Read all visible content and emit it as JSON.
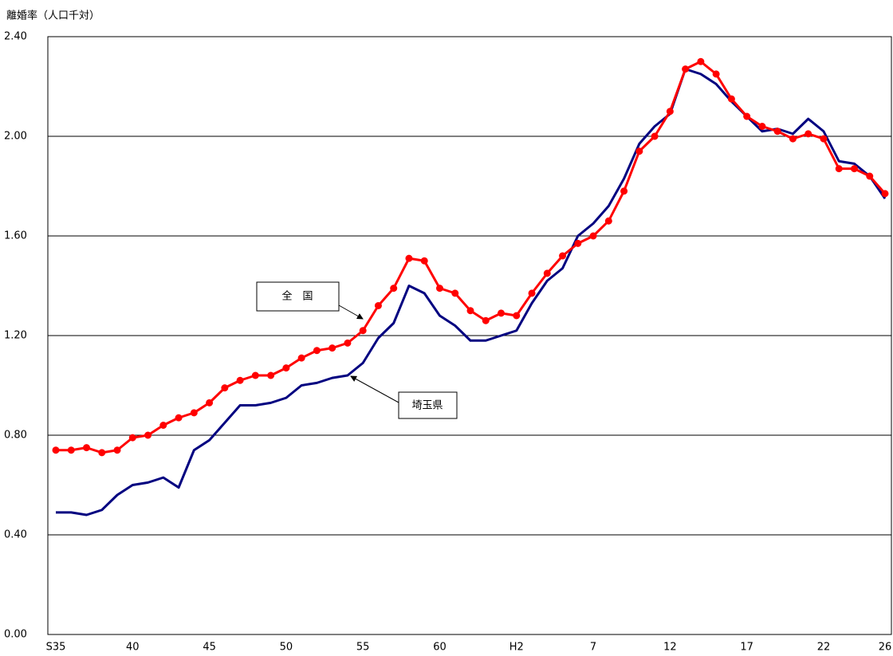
{
  "chart_data": {
    "type": "line",
    "y_label": "離婚率（人口千対）",
    "categories": [
      "S35",
      null,
      null,
      null,
      null,
      "40",
      null,
      null,
      null,
      null,
      "45",
      null,
      null,
      null,
      null,
      "50",
      null,
      null,
      null,
      null,
      "55",
      null,
      null,
      null,
      null,
      "60",
      null,
      null,
      null,
      null,
      "H2",
      null,
      null,
      null,
      null,
      "7",
      null,
      null,
      null,
      null,
      "12",
      null,
      null,
      null,
      null,
      "17",
      null,
      null,
      null,
      null,
      "22",
      null,
      null,
      null,
      "26"
    ],
    "series": [
      {
        "name": "全　国",
        "color": "#ff0000",
        "markers": true,
        "values": [
          0.74,
          0.74,
          0.75,
          0.73,
          0.74,
          0.79,
          0.8,
          0.84,
          0.87,
          0.89,
          0.93,
          0.99,
          1.02,
          1.04,
          1.04,
          1.07,
          1.11,
          1.14,
          1.15,
          1.17,
          1.22,
          1.32,
          1.39,
          1.51,
          1.5,
          1.39,
          1.37,
          1.3,
          1.26,
          1.29,
          1.28,
          1.37,
          1.45,
          1.52,
          1.57,
          1.6,
          1.66,
          1.78,
          1.94,
          2.0,
          2.1,
          2.27,
          2.3,
          2.25,
          2.15,
          2.08,
          2.04,
          2.02,
          1.99,
          2.01,
          1.99,
          1.87,
          1.87,
          1.84,
          1.77
        ]
      },
      {
        "name": "埼玉県",
        "color": "#000080",
        "markers": false,
        "values": [
          0.49,
          0.49,
          0.48,
          0.5,
          0.56,
          0.6,
          0.61,
          0.63,
          0.59,
          0.74,
          0.78,
          0.85,
          0.92,
          0.92,
          0.93,
          0.95,
          1.0,
          1.01,
          1.03,
          1.04,
          1.09,
          1.19,
          1.25,
          1.4,
          1.37,
          1.28,
          1.24,
          1.18,
          1.18,
          1.2,
          1.22,
          1.33,
          1.42,
          1.47,
          1.6,
          1.65,
          1.72,
          1.83,
          1.97,
          2.04,
          2.09,
          2.27,
          2.25,
          2.21,
          2.14,
          2.08,
          2.02,
          2.03,
          2.01,
          2.07,
          2.02,
          1.9,
          1.89,
          1.84,
          1.75
        ]
      }
    ],
    "ylim": [
      0,
      2.4
    ],
    "yticks": [
      {
        "value": 0,
        "label": "0.00"
      },
      {
        "value": 0.4,
        "label": "0.40"
      },
      {
        "value": 0.8,
        "label": "0.80"
      },
      {
        "value": 1.2,
        "label": "1.20"
      },
      {
        "value": 1.6,
        "label": "1.60"
      },
      {
        "value": 2.0,
        "label": "2.00"
      },
      {
        "value": 2.4,
        "label": "2.40"
      }
    ],
    "grid": true
  }
}
